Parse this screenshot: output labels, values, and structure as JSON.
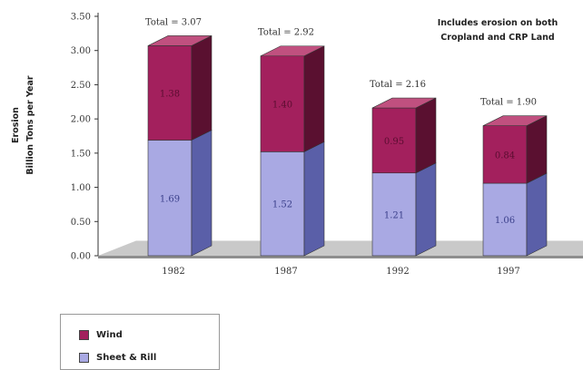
{
  "chart_data": {
    "type": "bar",
    "stacked": true,
    "three_d": true,
    "categories": [
      "1982",
      "1987",
      "1992",
      "1997"
    ],
    "series": [
      {
        "name": "Sheet & Rill",
        "values": [
          1.69,
          1.52,
          1.21,
          1.06
        ],
        "color": "#a9a9e3",
        "side_color": "#5a5fa8",
        "top_color": "#c7c8ef"
      },
      {
        "name": "Wind",
        "values": [
          1.38,
          1.4,
          0.95,
          0.84
        ],
        "color": "#a3205d",
        "side_color": "#5a1030",
        "top_color": "#c0507f"
      }
    ],
    "totals": [
      "Total = 3.07",
      "Total = 2.92",
      "Total = 2.16",
      "Total = 1.90"
    ],
    "segment_labels": [
      [
        "1.69",
        "1.52",
        "1.21",
        "1.06"
      ],
      [
        "1.38",
        "1.40",
        "0.95",
        "0.84"
      ]
    ],
    "y_ticks": [
      "0.00",
      "0.50",
      "1.00",
      "1.50",
      "2.00",
      "2.50",
      "3.00",
      "3.50"
    ],
    "ylim": [
      0,
      3.5
    ],
    "ylabel_line1": "Erosion",
    "ylabel_line2": "Billion Tons per Year",
    "note_line1": "Includes erosion on both",
    "note_line2": "Cropland and CRP Land",
    "legend_position": "bottom-left",
    "grid": false
  },
  "legend": {
    "items": [
      {
        "label": "Wind",
        "color": "#a3205d"
      },
      {
        "label": "Sheet & Rill",
        "color": "#a9a9e3"
      }
    ]
  }
}
